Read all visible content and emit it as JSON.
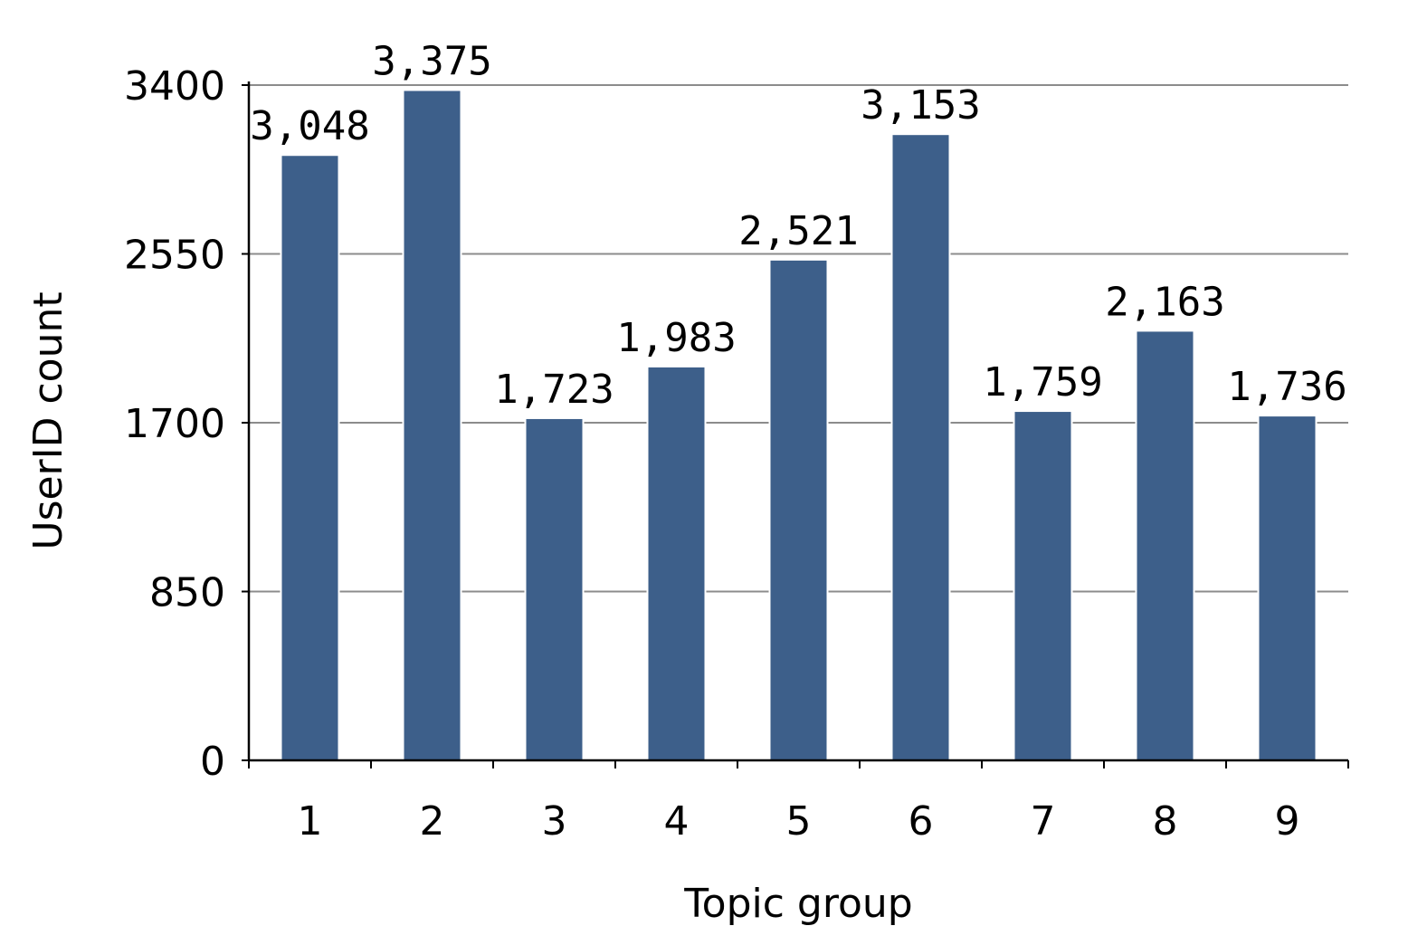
{
  "chart_data": {
    "type": "bar",
    "categories": [
      "1",
      "2",
      "3",
      "4",
      "5",
      "6",
      "7",
      "8",
      "9"
    ],
    "values": [
      3048,
      3375,
      1723,
      1983,
      2521,
      3153,
      1759,
      2163,
      1736
    ],
    "data_labels": [
      "3,048",
      "3,375",
      "1,723",
      "1,983",
      "2,521",
      "3,153",
      "1,759",
      "2,163",
      "1,736"
    ],
    "xlabel": "Topic group",
    "ylabel": "UserID count",
    "ylim": [
      0,
      3400
    ],
    "yticks": [
      0,
      850,
      1700,
      2550,
      3400
    ],
    "ytick_labels": [
      "0",
      "850",
      "1700",
      "2550",
      "3400"
    ],
    "grid": true,
    "legend": false,
    "colors": {
      "bar": "#3d5f8a",
      "gridline": "#8c8c8c",
      "axis": "#000000"
    }
  }
}
